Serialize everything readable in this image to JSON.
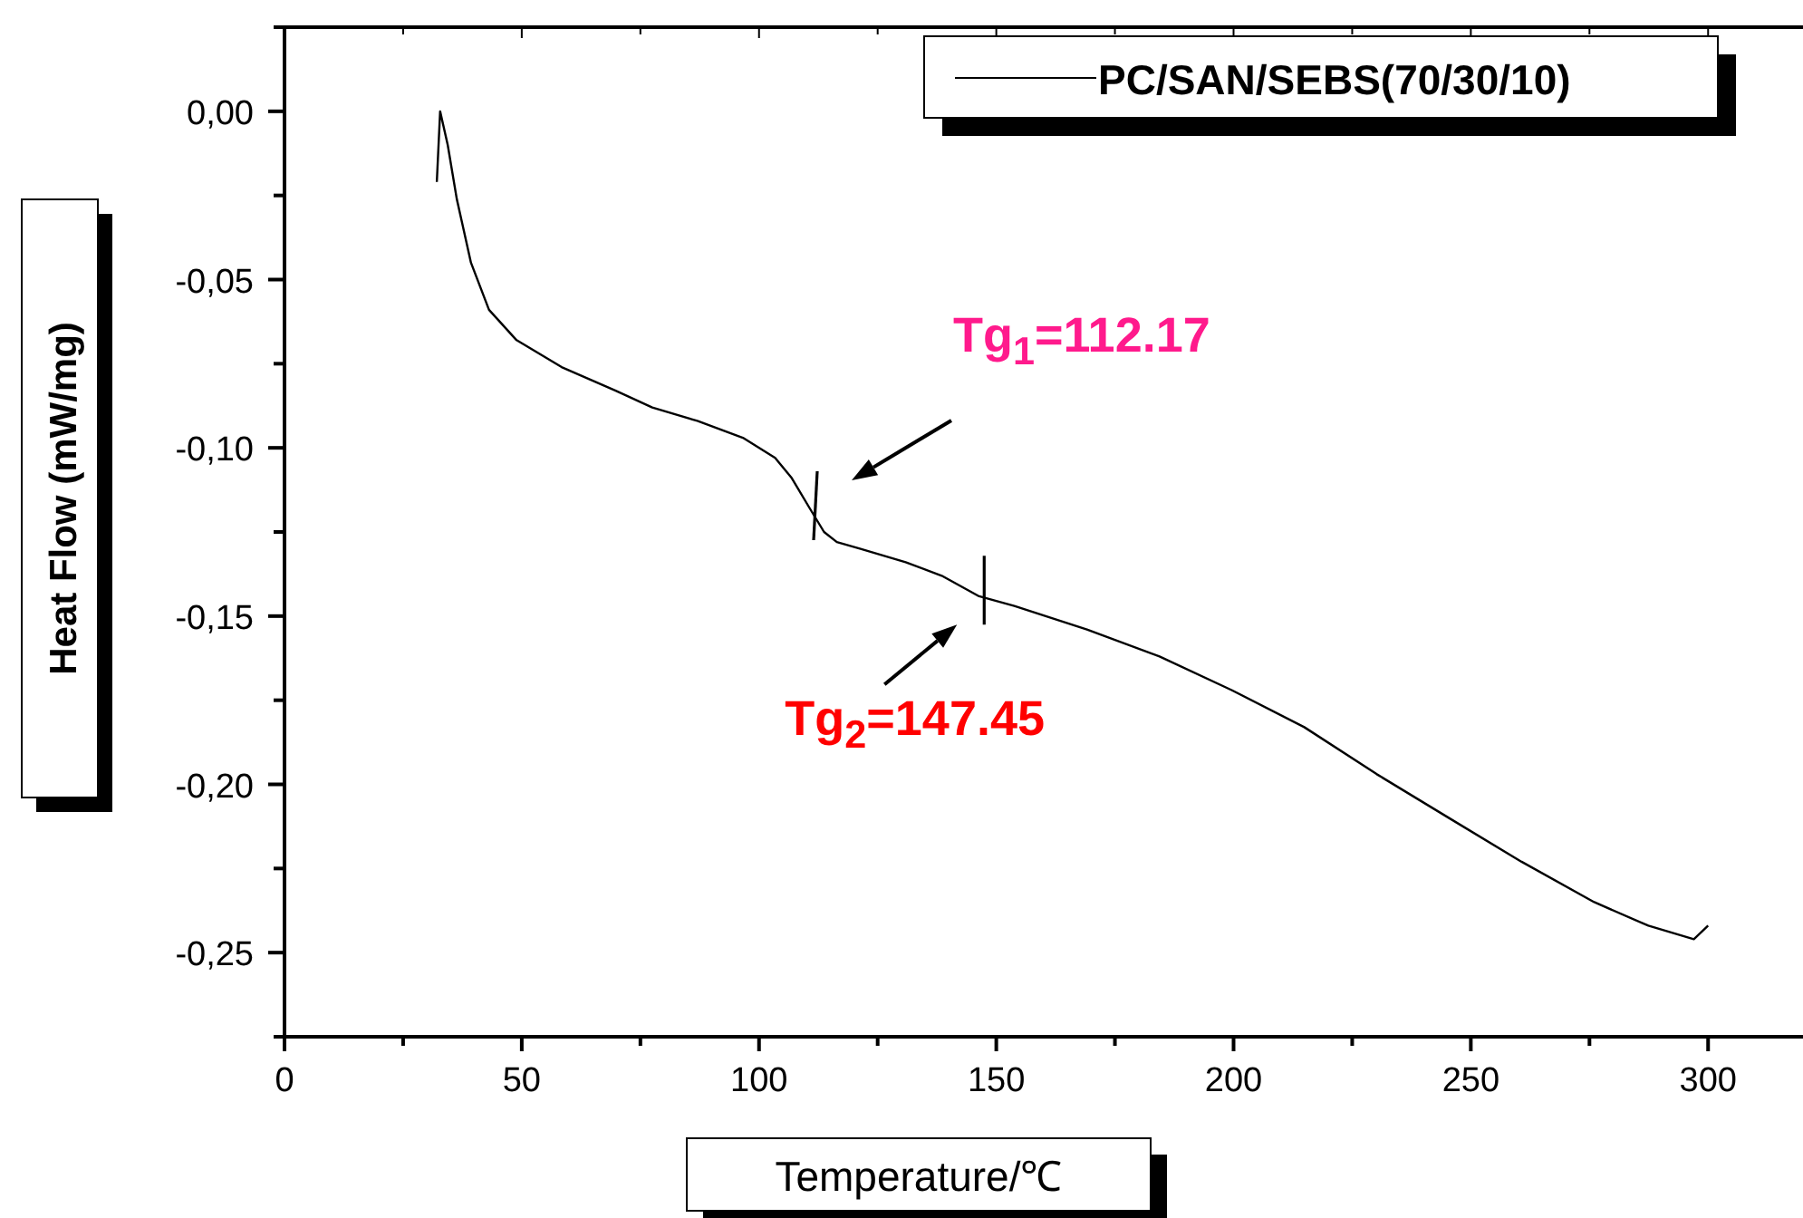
{
  "chart_data": {
    "type": "line",
    "xlabel": "Temperature/℃",
    "ylabel": "Heat Flow (mW/mg)",
    "xlim": [
      0,
      320
    ],
    "xticks": [
      0,
      {
        "value": 25,
        "label": null
      },
      50,
      {
        "value": 75,
        "label": null
      },
      100,
      {
        "value": 125,
        "label": null
      },
      150,
      {
        "value": 175,
        "label": null
      },
      200,
      {
        "value": 225,
        "label": null
      },
      250,
      {
        "value": 275,
        "label": null
      },
      300
    ],
    "ylim": [
      -0.275,
      0.025
    ],
    "yticks": [
      {
        "value": -0.275,
        "label": null
      },
      {
        "value": -0.25,
        "label": "-0,25"
      },
      {
        "value": -0.225,
        "label": null
      },
      {
        "value": -0.2,
        "label": "-0,20"
      },
      {
        "value": -0.175,
        "label": null
      },
      {
        "value": -0.15,
        "label": "-0,15"
      },
      {
        "value": -0.125,
        "label": null
      },
      {
        "value": -0.1,
        "label": "-0,10"
      },
      {
        "value": -0.075,
        "label": null
      },
      {
        "value": -0.05,
        "label": "-0,05"
      },
      {
        "value": -0.025,
        "label": null
      },
      {
        "value": 0,
        "label": "0,00"
      },
      {
        "value": 0.025,
        "label": null
      }
    ],
    "x": [
      32.1,
      32.8,
      34.4,
      36.3,
      39.3,
      43.1,
      48.9,
      58.4,
      69.8,
      77.5,
      87.0,
      96.6,
      103.4,
      106.9,
      110.7,
      113.7,
      116.4,
      121.4,
      130.9,
      138.5,
      146.2,
      153.8,
      169.1,
      184.4,
      199.6,
      214.9,
      230.2,
      245.4,
      260.7,
      276.0,
      287.4,
      297.0,
      300.0
    ],
    "series": [
      {
        "name": "PC/SAN/SEBS(70/30/10)",
        "color": "#000000",
        "values": [
          -0.021,
          0.0,
          -0.01,
          -0.026,
          -0.045,
          -0.059,
          -0.068,
          -0.076,
          -0.083,
          -0.088,
          -0.092,
          -0.097,
          -0.103,
          -0.109,
          -0.118,
          -0.125,
          -0.128,
          -0.13,
          -0.134,
          -0.138,
          -0.144,
          -0.147,
          -0.154,
          -0.162,
          -0.172,
          -0.183,
          -0.197,
          -0.21,
          -0.223,
          -0.235,
          -0.242,
          -0.246,
          -0.242
        ]
      }
    ],
    "annotations": [
      "Tg$_{1}$=112.17",
      {
        "text": "Tg$_{2}$=147.45",
        "x": 147.45,
        "y": -0.145
      }
    ],
    "grid": false,
    "legend": "top right",
    "marker": "none",
    "line_style": "solid"
  }
}
